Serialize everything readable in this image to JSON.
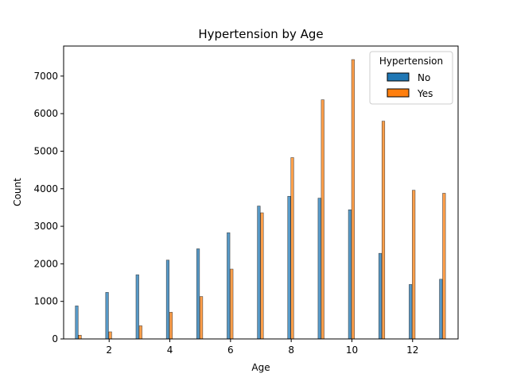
{
  "chart_data": {
    "type": "bar",
    "title": "Hypertension by Age",
    "xlabel": "Age",
    "ylabel": "Count",
    "xlim": [
      0.5,
      13.5
    ],
    "ylim": [
      0,
      7800
    ],
    "xticks": [
      2,
      4,
      6,
      8,
      10,
      12
    ],
    "yticks": [
      0,
      1000,
      2000,
      3000,
      4000,
      5000,
      6000,
      7000
    ],
    "grid": false,
    "legend": {
      "title": "Hypertension",
      "placement": "top-right"
    },
    "x": [
      1,
      2,
      3,
      4,
      5,
      6,
      7,
      8,
      9,
      10,
      11,
      12,
      13
    ],
    "series": [
      {
        "name": "No",
        "color": "#1f77b4",
        "values": [
          880,
          1240,
          1710,
          2100,
          2400,
          2830,
          3540,
          3800,
          3750,
          3440,
          2280,
          1450,
          1590
        ]
      },
      {
        "name": "Yes",
        "color": "#ff7f0e",
        "values": [
          100,
          190,
          350,
          710,
          1130,
          1860,
          3360,
          4830,
          6370,
          7440,
          5800,
          3960,
          3880
        ]
      }
    ]
  }
}
